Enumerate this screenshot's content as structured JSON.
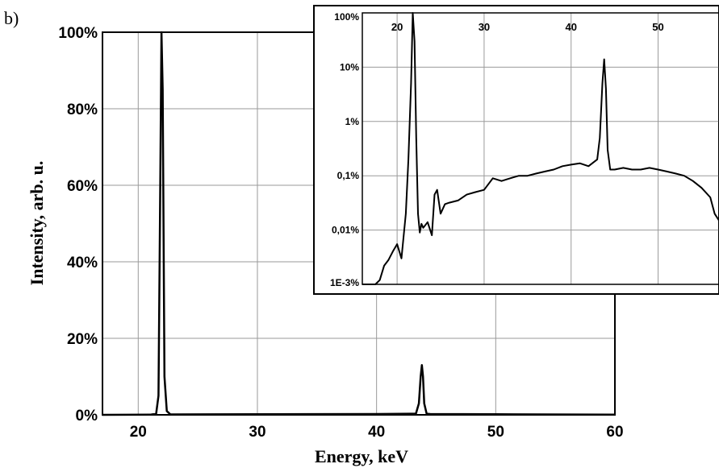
{
  "panel_label": "b)",
  "chart_data": [
    {
      "type": "line",
      "xlabel": "Energy, keV",
      "ylabel": "Intensity, arb. u.",
      "xlim": [
        17,
        60
      ],
      "ylim": [
        0,
        100
      ],
      "x_ticks": [
        20,
        30,
        40,
        50,
        60
      ],
      "y_ticks": [
        0,
        20,
        40,
        60,
        80,
        100
      ],
      "x_tick_labels": [
        "20",
        "30",
        "40",
        "50",
        "60"
      ],
      "y_tick_labels": [
        "0%",
        "20%",
        "40%",
        "60%",
        "80%",
        "100%"
      ],
      "grid": true,
      "series": [
        {
          "color": "#000000",
          "x": [
            17.0,
            21.0,
            21.5,
            21.7,
            21.85,
            21.95,
            22.05,
            22.2,
            22.4,
            22.7,
            30.0,
            40.0,
            43.3,
            43.55,
            43.7,
            43.8,
            43.9,
            44.0,
            44.2,
            44.5,
            50.0,
            60.0
          ],
          "y": [
            0,
            0.05,
            0.3,
            5,
            60,
            100,
            85,
            10,
            1,
            0.1,
            0.15,
            0.2,
            0.3,
            3,
            10,
            13,
            10,
            3,
            0.3,
            0.2,
            0.15,
            0.05
          ]
        }
      ]
    },
    {
      "type": "line",
      "xlim": [
        16,
        57
      ],
      "ylim": [
        0.001,
        100
      ],
      "yscale": "log",
      "x_ticks": [
        20,
        30,
        40,
        50
      ],
      "x_tick_labels": [
        "20",
        "30",
        "40",
        "50"
      ],
      "y_ticks": [
        100,
        10,
        1,
        0.1,
        0.01,
        0.001
      ],
      "y_tick_labels": [
        "100%",
        "10%",
        "1%",
        "0,1%",
        "0,01%",
        "1E-3%"
      ],
      "grid": true,
      "series": [
        {
          "color": "#000000",
          "x": [
            16.0,
            16.5,
            17.0,
            17.5,
            18.0,
            18.5,
            19.0,
            19.5,
            20.0,
            20.5,
            21.0,
            21.3,
            21.6,
            21.8,
            22.0,
            22.2,
            22.4,
            22.6,
            22.8,
            23.0,
            23.5,
            24.0,
            24.3,
            24.6,
            25.0,
            25.5,
            26.0,
            27.0,
            28.0,
            29.0,
            30.0,
            31.0,
            32.0,
            33.0,
            34.0,
            35.0,
            36.0,
            37.0,
            38.0,
            39.0,
            40.0,
            41.0,
            42.0,
            43.0,
            43.3,
            43.6,
            43.8,
            44.0,
            44.2,
            44.5,
            45.0,
            46.0,
            47.0,
            48.0,
            49.0,
            50.0,
            51.0,
            52.0,
            53.0,
            54.0,
            55.0,
            56.0,
            56.5,
            57.0
          ],
          "y": [
            0.0008,
            0.001,
            0.0008,
            0.0007,
            0.0012,
            0.0022,
            0.0028,
            0.004,
            0.0055,
            0.003,
            0.02,
            0.2,
            5,
            100,
            30,
            0.5,
            0.02,
            0.009,
            0.013,
            0.011,
            0.014,
            0.008,
            0.045,
            0.055,
            0.02,
            0.03,
            0.032,
            0.035,
            0.045,
            0.05,
            0.055,
            0.09,
            0.08,
            0.09,
            0.1,
            0.1,
            0.11,
            0.12,
            0.13,
            0.15,
            0.16,
            0.17,
            0.15,
            0.2,
            0.5,
            5,
            14,
            4,
            0.3,
            0.13,
            0.13,
            0.14,
            0.13,
            0.13,
            0.14,
            0.13,
            0.12,
            0.11,
            0.1,
            0.08,
            0.06,
            0.04,
            0.02,
            0.015
          ]
        }
      ]
    }
  ]
}
